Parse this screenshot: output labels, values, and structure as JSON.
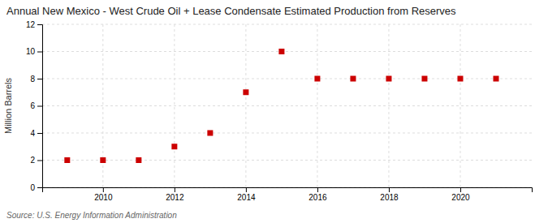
{
  "chart_data": {
    "type": "scatter",
    "title": "Annual New Mexico - West Crude Oil + Lease Condensate Estimated Production from Reserves",
    "y_label": "Million Barrels",
    "annotation": "Source: U.S. Energy Information Administration",
    "x": [
      2009,
      2010,
      2011,
      2012,
      2013,
      2014,
      2015,
      2016,
      2017,
      2018,
      2019,
      2020,
      2021
    ],
    "values": [
      2.0,
      2.0,
      2.0,
      3.0,
      4.0,
      7.0,
      10.0,
      8.0,
      8.0,
      8.0,
      8.0,
      8.0,
      8.0
    ],
    "xlim": [
      2008.3,
      2022.0
    ],
    "ylim": [
      0,
      12
    ],
    "xticks": [
      2010,
      2012,
      2014,
      2016,
      2018,
      2020
    ],
    "yticks": [
      0,
      2,
      4,
      6,
      8,
      10,
      12
    ],
    "color": "#cc0000",
    "marker": "square",
    "grid": true
  }
}
